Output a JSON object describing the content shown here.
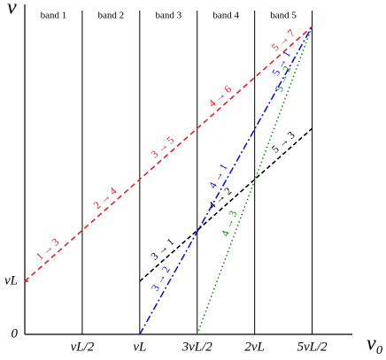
{
  "chart_data": {
    "type": "line",
    "y_label": "ν",
    "x_label": "v₀",
    "xlim": [
      0,
      2.85
    ],
    "ylim": [
      0,
      6.3
    ],
    "xticks": [
      {
        "value": 0.5,
        "label": "vL/2"
      },
      {
        "value": 1,
        "label": "vL"
      },
      {
        "value": 1.5,
        "label": "3vL/2"
      },
      {
        "value": 2,
        "label": "2vL"
      },
      {
        "value": 2.5,
        "label": "5vL/2"
      }
    ],
    "yticks": [
      0,
      {
        "value": 1,
        "label": "νL"
      }
    ],
    "grid": "x",
    "bands": [
      {
        "label": "band 1",
        "x": 0.25
      },
      {
        "label": "band 2",
        "x": 0.75
      },
      {
        "label": "band 3",
        "x": 1.25
      },
      {
        "label": "band 4",
        "x": 1.75
      },
      {
        "label": "band 5",
        "x": 2.25
      }
    ],
    "series": [
      {
        "color": "#e61e28",
        "dash": "6,4",
        "x": [
          0,
          2.5
        ],
        "values": [
          1,
          5.8
        ],
        "labels": [
          {
            "text": "1 → 3",
            "x": 0.25
          },
          {
            "text": "2 → 4",
            "x": 0.75
          },
          {
            "text": "3 → 5",
            "x": 1.25
          },
          {
            "text": "4 → 6",
            "x": 1.75
          },
          {
            "text": "5 → 7",
            "x": 2.3
          }
        ]
      },
      {
        "color": "#000000",
        "dash": "5,3",
        "x": [
          1,
          2.5
        ],
        "values": [
          1,
          3.88
        ],
        "labels": [
          {
            "text": "3 → 1",
            "x": 1.25
          },
          {
            "text": "4 → 2",
            "x": 1.75
          },
          {
            "text": "5 → 3",
            "x": 2.3
          }
        ]
      },
      {
        "color": "#1414d2",
        "dash": "8,3,2,3",
        "x": [
          1,
          2.5
        ],
        "values": [
          0,
          5.8
        ],
        "labels": [
          {
            "text": "3 → 2",
            "x": 1.25
          },
          {
            "text": "4 → 1",
            "x": 1.75
          },
          {
            "text": "5 → 1",
            "x": 2.3
          }
        ]
      },
      {
        "color": "#1a8a1a",
        "dash": "1.5,3",
        "x": [
          1.5,
          2.5
        ],
        "values": [
          0,
          5.8
        ],
        "labels": [
          {
            "text": "4 → 3",
            "x": 1.85
          },
          {
            "text": "5 → 2",
            "x": 2.32
          }
        ]
      }
    ]
  }
}
